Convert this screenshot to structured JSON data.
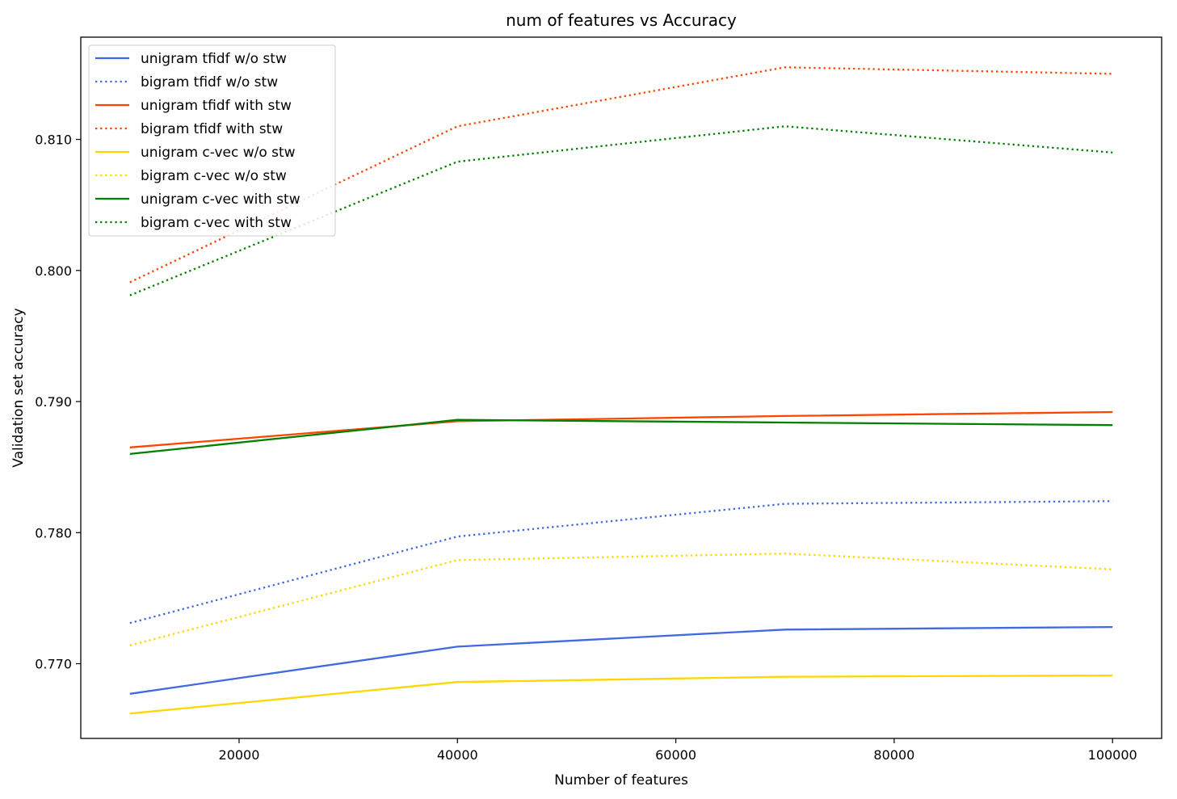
{
  "chart_data": {
    "type": "line",
    "title": "num of features vs Accuracy",
    "xlabel": "Number of features",
    "ylabel": "Validation set accuracy",
    "x": [
      10000,
      40000,
      70000,
      100000
    ],
    "xlim": [
      5500,
      104500
    ],
    "ylim": [
      0.7643,
      0.8178
    ],
    "xticks": [
      20000,
      40000,
      60000,
      80000,
      100000
    ],
    "xtick_labels": [
      "20000",
      "40000",
      "60000",
      "80000",
      "100000"
    ],
    "yticks": [
      0.77,
      0.78,
      0.79,
      0.8,
      0.81
    ],
    "ytick_labels": [
      "0.770",
      "0.780",
      "0.790",
      "0.800",
      "0.810"
    ],
    "grid": false,
    "legend_position": "upper-left",
    "series": [
      {
        "name": "unigram tfidf w/o stw",
        "color": "#4169E1",
        "style": "solid",
        "values": [
          0.7677,
          0.7713,
          0.7726,
          0.7728
        ]
      },
      {
        "name": "bigram tfidf w/o stw",
        "color": "#4169E1",
        "style": "dotted",
        "values": [
          0.7731,
          0.7797,
          0.7822,
          0.7824
        ]
      },
      {
        "name": "unigram tfidf with stw",
        "color": "#FF4500",
        "style": "solid",
        "values": [
          0.7865,
          0.7885,
          0.7889,
          0.7892
        ]
      },
      {
        "name": "bigram tfidf with stw",
        "color": "#FF4500",
        "style": "dotted",
        "values": [
          0.7991,
          0.811,
          0.8155,
          0.815
        ]
      },
      {
        "name": "unigram c-vec w/o stw",
        "color": "#FFD700",
        "style": "solid",
        "values": [
          0.7662,
          0.7686,
          0.769,
          0.7691
        ]
      },
      {
        "name": "bigram c-vec w/o stw",
        "color": "#FFD700",
        "style": "dotted",
        "values": [
          0.7714,
          0.7779,
          0.7784,
          0.7772
        ]
      },
      {
        "name": "unigram c-vec with stw",
        "color": "#008000",
        "style": "solid",
        "values": [
          0.786,
          0.7886,
          0.7884,
          0.7882
        ]
      },
      {
        "name": "bigram c-vec with stw",
        "color": "#008000",
        "style": "dotted",
        "values": [
          0.7981,
          0.8083,
          0.811,
          0.809
        ]
      }
    ]
  }
}
